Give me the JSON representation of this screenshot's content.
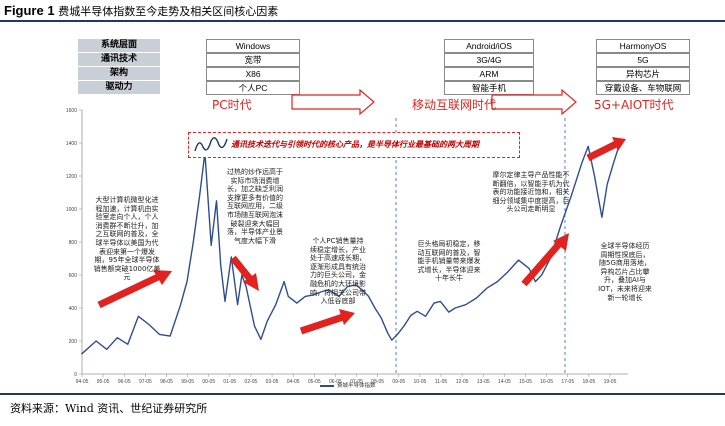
{
  "figure": {
    "label": "Figure 1",
    "title": "费城半导体指数至今走势及相关区间核心因素",
    "source": "资料来源：Wind 资讯、世纪证券研究所"
  },
  "table": {
    "rows": [
      {
        "label": "系统层面",
        "cells": [
          "Windows",
          "Android/iOS",
          "HarmonyOS"
        ]
      },
      {
        "label": "通讯技术",
        "cells": [
          "宽带",
          "3G/4G",
          "5G"
        ]
      },
      {
        "label": "架构",
        "cells": [
          "X86",
          "ARM",
          "异构芯片"
        ]
      },
      {
        "label": "驱动力",
        "cells": [
          "个人PC",
          "智能手机",
          "穿戴设备、车物联网"
        ]
      }
    ]
  },
  "eras": [
    "PC时代",
    "移动互联网时代",
    "5G+AIOT时代"
  ],
  "theme_text": "通讯技术迭代与引领时代的核心产品，是半导体行业最基础的两大周期",
  "annotations": [
    "大型计算机微型化进程加速，计算机由实验室走向个人，个人消费群不断壮升，加之互联网的普及，全球半导体以美国为代表迎来第一个爆发期，95年全球半导体销售额突破1000亿美元",
    "过热的炒作远高于实际市场消费增长，加之缺乏利润支撑更多有价值的互联网应用，二级市场随互联网泡沫破裂迎来大幅回落，半导体产业景气度大幅下滑",
    "个人PC销售量持续稳定增长，产业处于高速成长期，逐渐形成具有统治力的巨头公司，金融危机的大环境影响，将相关公司带入低谷底部",
    "巨头格局初稳定，移动互联网的普及，智能手机销量带来爆发式增长，半导体迎来十年长牛",
    "摩尔定律主导产品性能不断翻倍，以智能手机为代表的功能接近饱和，相关细分领域集中度提高，巨头公司走断明显",
    "全球半导体经历周期性探底后，随5G商用落地，异构芯片占比攀升，叠加AI与IOT，未来将迎来新一轮增长"
  ],
  "legend": "费城半导体指数",
  "chart_data": {
    "type": "line",
    "title": "",
    "xlabel": "",
    "ylabel": "",
    "ylim": [
      0,
      1600
    ],
    "yticks": [
      "0",
      "200",
      "400",
      "600",
      "800",
      "1000",
      "1200",
      "1400",
      "1600"
    ],
    "xticks": [
      "94-05",
      "95-05",
      "96-05",
      "97-05",
      "98-05",
      "99-05",
      "00-05",
      "01-05",
      "02-05",
      "03-05",
      "04-05",
      "05-05",
      "06-05",
      "07-05",
      "08-05",
      "09-05",
      "10-05",
      "11-05",
      "12-05",
      "13-05",
      "14-05",
      "15-05",
      "16-05",
      "17-05",
      "18-05",
      "19-05"
    ],
    "grid": false,
    "series": [
      {
        "name": "费城半导体指数",
        "color": "#2e4d8f",
        "x": [
          1994.3,
          1995.0,
          1995.5,
          1996.0,
          1996.5,
          1997.0,
          1997.5,
          1998.0,
          1998.5,
          1999.0,
          1999.3,
          1999.6,
          1999.9,
          2000.15,
          2000.45,
          2000.7,
          2000.9,
          2001.1,
          2001.4,
          2001.7,
          2001.9,
          2002.1,
          2002.5,
          2002.8,
          2003.1,
          2003.5,
          2003.9,
          2004.1,
          2004.5,
          2004.9,
          2005.3,
          2005.7,
          2006.0,
          2006.5,
          2006.9,
          2007.3,
          2007.6,
          2007.9,
          2008.2,
          2008.5,
          2008.8,
          2009.0,
          2009.3,
          2009.6,
          2009.9,
          2010.2,
          2010.6,
          2011.0,
          2011.3,
          2011.7,
          2012.0,
          2012.5,
          2013.0,
          2013.5,
          2014.0,
          2014.5,
          2015.0,
          2015.5,
          2015.8,
          2016.1,
          2016.5,
          2017.0,
          2017.5,
          2018.0,
          2018.3,
          2018.6,
          2018.95,
          2019.2,
          2019.5,
          2019.8
        ],
        "values": [
          120,
          200,
          150,
          220,
          180,
          350,
          300,
          240,
          230,
          420,
          560,
          800,
          1080,
          1340,
          780,
          1050,
          660,
          440,
          710,
          420,
          600,
          530,
          290,
          210,
          320,
          420,
          560,
          470,
          430,
          470,
          480,
          500,
          510,
          470,
          530,
          540,
          510,
          470,
          400,
          340,
          250,
          205,
          245,
          295,
          355,
          380,
          350,
          430,
          440,
          375,
          400,
          420,
          460,
          520,
          560,
          620,
          690,
          640,
          560,
          600,
          700,
          900,
          1080,
          1280,
          1380,
          1200,
          950,
          1150,
          1280,
          1400
        ]
      }
    ]
  }
}
